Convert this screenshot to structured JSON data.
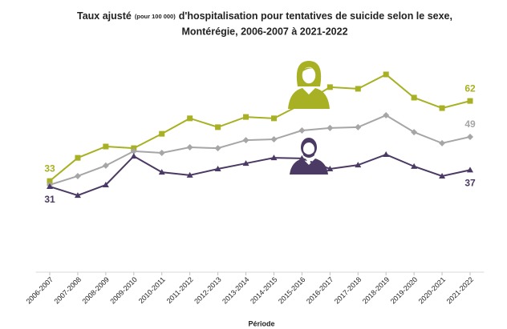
{
  "chart_data": {
    "type": "line",
    "title": {
      "main": "Taux ajusté",
      "note": "(pour 100 000)",
      "rest": "d'hospitalisation pour tentatives de suicide selon le sexe,",
      "line2": "Montérégie, 2006-2007 à 2021-2022"
    },
    "x_label": "Période",
    "categories": [
      "2006-2007",
      "2007-2008",
      "2008-2009",
      "2009-2010",
      "2010-2011",
      "2011-2012",
      "2012-2013",
      "2013-2014",
      "2014-2015",
      "2015-2016",
      "2016-2017",
      "2017-2018",
      "2018-2019",
      "2019-2020",
      "2020-2021",
      "2021-2022"
    ],
    "ylim": [
      0,
      80
    ],
    "series": [
      {
        "color": "#a8b023",
        "marker": "square",
        "data_labels": "both",
        "values": [
          33,
          41.4,
          45.5,
          44.9,
          50.1,
          55.7,
          52.5,
          56.2,
          55.7,
          60.9,
          67,
          66.4,
          71.6,
          63.2,
          59.4,
          62
        ]
      },
      {
        "color": "#a6a6a6",
        "marker": "diamond",
        "data_labels": "end",
        "values": [
          31.6,
          34.8,
          38.6,
          43.8,
          43.2,
          45.2,
          44.9,
          47.8,
          48.1,
          51.3,
          52.2,
          52.5,
          56.8,
          50.7,
          46.7,
          49
        ]
      },
      {
        "color": "#4b3a63",
        "marker": "triangle",
        "data_labels": "both",
        "values": [
          31,
          27.8,
          31.6,
          42,
          36.2,
          35.1,
          37.4,
          39.4,
          41.4,
          41.2,
          37.4,
          38.8,
          42.6,
          38.3,
          34.8,
          37
        ]
      }
    ]
  }
}
